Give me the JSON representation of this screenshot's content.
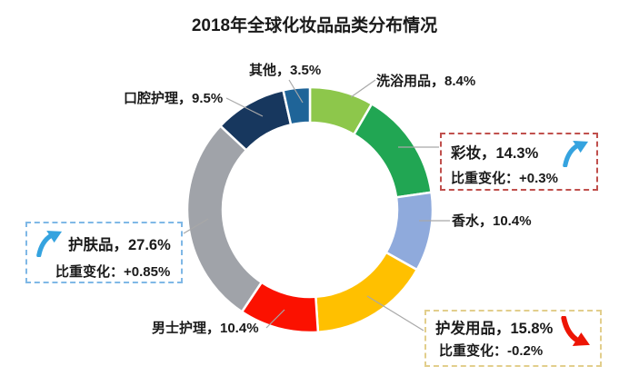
{
  "title": "2018年全球化妆品品类分布情况",
  "chart_data": {
    "type": "pie",
    "subtype": "donut",
    "title": "2018年全球化妆品品类分布情况",
    "unit": "%",
    "start_angle_deg": 0,
    "direction": "clockwise",
    "legend": "none",
    "segments": [
      {
        "id": "shower",
        "label": "洗浴用品",
        "value": 8.4,
        "color": "#8DC74B"
      },
      {
        "id": "makeup",
        "label": "彩妆",
        "value": 14.3,
        "color": "#21A653",
        "share_change": "+0.3%",
        "trend": "up"
      },
      {
        "id": "perfume",
        "label": "香水",
        "value": 10.4,
        "color": "#8FAADC"
      },
      {
        "id": "haircare",
        "label": "护发用品",
        "value": 15.8,
        "color": "#FFC000",
        "share_change": "-0.2%",
        "trend": "down"
      },
      {
        "id": "mens",
        "label": "男士护理",
        "value": 10.4,
        "color": "#FB1100"
      },
      {
        "id": "skincare",
        "label": "护肤品",
        "value": 27.6,
        "color": "#A0A3A9",
        "share_change": "+0.85%",
        "trend": "up"
      },
      {
        "id": "oral",
        "label": "口腔护理",
        "value": 9.5,
        "color": "#17375E"
      },
      {
        "id": "other",
        "label": "其他",
        "value": 3.5,
        "color": "#1F6498"
      }
    ]
  },
  "plain_labels": {
    "other": "其他，3.5%",
    "shower": "洗浴用品，8.4%",
    "oral": "口腔护理，9.5%",
    "perfume": "香水，10.4%",
    "mens": "男士护理，10.4%"
  },
  "callouts": {
    "skincare": {
      "line1": "护肤品，27.6%",
      "line2": "比重变化：+0.85%",
      "border_color": "#7FB8E6",
      "arrow": "up-blue"
    },
    "makeup": {
      "line1": "彩妆，14.3%",
      "line2": "比重变化：+0.3%",
      "border_color": "#C0504D",
      "arrow": "up-blue"
    },
    "haircare": {
      "line1": "护发用品，15.8%",
      "line2": "比重变化：-0.2%",
      "border_color": "#E2CE8C",
      "arrow": "down-red"
    }
  },
  "colors": {
    "arrow_up": "#35A3DF",
    "arrow_down": "#ED1505",
    "leader_line": "#A8A8A8",
    "text": "#1A1A1A",
    "background": "#FFFFFF"
  }
}
